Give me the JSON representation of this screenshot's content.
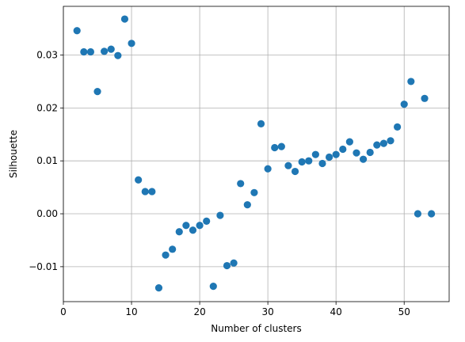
{
  "chart_data": {
    "type": "scatter",
    "title": "",
    "xlabel": "Number of clusters",
    "ylabel": "Silhouette",
    "xlim": [
      0,
      56.6
    ],
    "ylim": [
      -0.0166,
      0.0392
    ],
    "xticks": [
      0,
      10,
      20,
      30,
      40,
      50
    ],
    "yticks": [
      -0.01,
      0.0,
      0.01,
      0.02,
      0.03
    ],
    "xtick_labels": [
      "0",
      "10",
      "20",
      "30",
      "40",
      "50"
    ],
    "ytick_labels": [
      "−0.01",
      "0.00",
      "0.01",
      "0.02",
      "0.03"
    ],
    "grid": true,
    "marker_color": "#1f77b4",
    "series": [
      {
        "points": [
          {
            "x": 2,
            "y": 0.0346
          },
          {
            "x": 3,
            "y": 0.0306
          },
          {
            "x": 4,
            "y": 0.0306
          },
          {
            "x": 5,
            "y": 0.0231
          },
          {
            "x": 6,
            "y": 0.0307
          },
          {
            "x": 7,
            "y": 0.0311
          },
          {
            "x": 8,
            "y": 0.0299
          },
          {
            "x": 9,
            "y": 0.0368
          },
          {
            "x": 10,
            "y": 0.0322
          },
          {
            "x": 11,
            "y": 0.0064
          },
          {
            "x": 12,
            "y": 0.0042
          },
          {
            "x": 13,
            "y": 0.0042
          },
          {
            "x": 14,
            "y": -0.014
          },
          {
            "x": 15,
            "y": -0.0078
          },
          {
            "x": 16,
            "y": -0.0067
          },
          {
            "x": 17,
            "y": -0.0034
          },
          {
            "x": 18,
            "y": -0.0022
          },
          {
            "x": 19,
            "y": -0.0031
          },
          {
            "x": 20,
            "y": -0.0022
          },
          {
            "x": 21,
            "y": -0.0014
          },
          {
            "x": 22,
            "y": -0.0137
          },
          {
            "x": 23,
            "y": -0.0003
          },
          {
            "x": 24,
            "y": -0.0098
          },
          {
            "x": 25,
            "y": -0.0093
          },
          {
            "x": 26,
            "y": 0.0057
          },
          {
            "x": 27,
            "y": 0.0017
          },
          {
            "x": 28,
            "y": 0.004
          },
          {
            "x": 29,
            "y": 0.017
          },
          {
            "x": 30,
            "y": 0.0085
          },
          {
            "x": 31,
            "y": 0.0125
          },
          {
            "x": 32,
            "y": 0.0127
          },
          {
            "x": 33,
            "y": 0.0091
          },
          {
            "x": 34,
            "y": 0.008
          },
          {
            "x": 35,
            "y": 0.0098
          },
          {
            "x": 36,
            "y": 0.01
          },
          {
            "x": 37,
            "y": 0.0112
          },
          {
            "x": 38,
            "y": 0.0095
          },
          {
            "x": 39,
            "y": 0.0107
          },
          {
            "x": 40,
            "y": 0.0112
          },
          {
            "x": 41,
            "y": 0.0122
          },
          {
            "x": 42,
            "y": 0.0136
          },
          {
            "x": 43,
            "y": 0.0115
          },
          {
            "x": 44,
            "y": 0.0103
          },
          {
            "x": 45,
            "y": 0.0116
          },
          {
            "x": 46,
            "y": 0.013
          },
          {
            "x": 47,
            "y": 0.0133
          },
          {
            "x": 48,
            "y": 0.0138
          },
          {
            "x": 49,
            "y": 0.0164
          },
          {
            "x": 50,
            "y": 0.0207
          },
          {
            "x": 51,
            "y": 0.025
          },
          {
            "x": 52,
            "y": 0.0
          },
          {
            "x": 53,
            "y": 0.0218
          },
          {
            "x": 54,
            "y": 0.0
          }
        ]
      }
    ]
  }
}
